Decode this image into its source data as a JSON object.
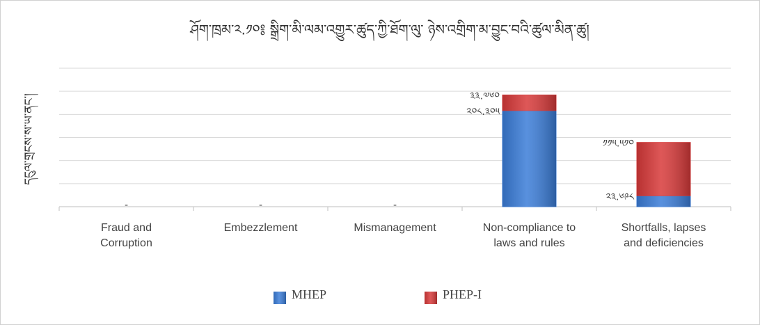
{
  "chart_data": {
    "type": "bar",
    "stacked": true,
    "title": "ཤོག་ཁྲམ་༢.༡༠༔ སྒྲིག་མི་ལམ་འགྱུར་ཚུད་ཀྱི་ཐོག་ལུ་ ཉེས་འགྲིག་མ་བྱུང་བའི་ཚུལ་མིན་ཚུ།",
    "y_label": "དངུལ་གྲངས་ས་ཡ་ནང་།",
    "categories": [
      "Fraud and Corruption",
      "Embezzlement",
      "Mismanagement",
      "Non-compliance to laws and rules",
      "Shortfalls, lapses and deficiencies"
    ],
    "series": [
      {
        "name": "MHEP",
        "color": "#3b7dd8",
        "values": [
          0,
          0,
          0,
          208.305,
          23.698
        ],
        "value_labels": [
          "-",
          "-",
          "-",
          "༢༠༨.༣༠༥",
          "༢༣.༦༩༨"
        ]
      },
      {
        "name": "PHEP-I",
        "color": "#d83a3a",
        "values": [
          0,
          0,
          0,
          33.76,
          115.51
        ],
        "value_labels": [
          null,
          null,
          null,
          "༣༣.༧༦༠",
          "༡༡༥.༥༡༠"
        ]
      }
    ],
    "ylim": [
      0,
      300
    ],
    "yticks": [
      0,
      50,
      100,
      150,
      200,
      250,
      300
    ],
    "grid": true,
    "legend": "bottom"
  }
}
